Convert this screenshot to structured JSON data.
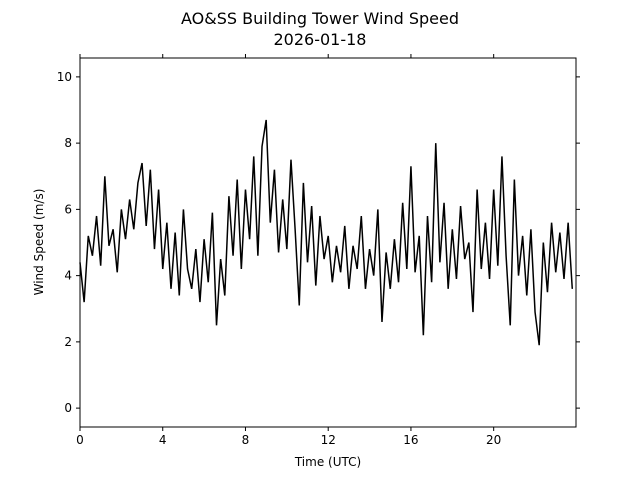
{
  "chart_data": {
    "type": "line",
    "title": "AO&SS Building Tower Wind Speed",
    "subtitle": "2026-01-18",
    "x_label": "Time (UTC)",
    "y_label": "Wind Speed (m/s)",
    "xlim": [
      0,
      23.98
    ],
    "xticks": [
      0,
      4,
      8,
      12,
      16,
      20
    ],
    "ylim": [
      -0.57,
      10.57
    ],
    "yticks": [
      0,
      2,
      4,
      6,
      8,
      10
    ],
    "color": "#000000",
    "x": [
      0.0,
      0.2,
      0.4,
      0.6,
      0.8,
      1.0,
      1.2,
      1.4,
      1.6,
      1.8,
      2.0,
      2.2,
      2.4,
      2.6,
      2.8,
      3.0,
      3.2,
      3.4,
      3.6,
      3.8,
      4.0,
      4.2,
      4.4,
      4.6,
      4.8,
      5.0,
      5.2,
      5.4,
      5.6,
      5.8,
      6.0,
      6.2,
      6.4,
      6.6,
      6.8,
      7.0,
      7.2,
      7.4,
      7.6,
      7.8,
      8.0,
      8.2,
      8.4,
      8.6,
      8.8,
      9.0,
      9.2,
      9.4,
      9.6,
      9.8,
      10.0,
      10.2,
      10.4,
      10.6,
      10.8,
      11.0,
      11.2,
      11.4,
      11.6,
      11.8,
      12.0,
      12.2,
      12.4,
      12.6,
      12.8,
      13.0,
      13.2,
      13.4,
      13.6,
      13.8,
      14.0,
      14.2,
      14.4,
      14.6,
      14.8,
      15.0,
      15.2,
      15.4,
      15.6,
      15.8,
      16.0,
      16.2,
      16.4,
      16.6,
      16.8,
      17.0,
      17.2,
      17.4,
      17.6,
      17.8,
      18.0,
      18.2,
      18.4,
      18.6,
      18.8,
      19.0,
      19.2,
      19.4,
      19.6,
      19.8,
      20.0,
      20.2,
      20.4,
      20.6,
      20.8,
      21.0,
      21.2,
      21.4,
      21.6,
      21.8,
      22.0,
      22.2,
      22.4,
      22.6,
      22.8,
      23.0,
      23.2,
      23.4,
      23.6,
      23.8
    ],
    "values": [
      4.4,
      3.2,
      5.2,
      4.6,
      5.8,
      4.3,
      7.0,
      4.9,
      5.4,
      4.1,
      6.0,
      5.1,
      6.3,
      5.4,
      6.8,
      7.4,
      5.5,
      7.2,
      4.8,
      6.6,
      4.2,
      5.6,
      3.6,
      5.3,
      3.4,
      6.0,
      4.2,
      3.6,
      4.8,
      3.2,
      5.1,
      3.8,
      5.9,
      2.5,
      4.5,
      3.4,
      6.4,
      4.6,
      6.9,
      4.2,
      6.6,
      5.1,
      7.6,
      4.6,
      7.9,
      8.7,
      5.6,
      7.2,
      4.7,
      6.3,
      4.8,
      7.5,
      5.4,
      3.1,
      6.8,
      4.4,
      6.1,
      3.7,
      5.8,
      4.5,
      5.2,
      3.8,
      4.9,
      4.1,
      5.5,
      3.6,
      4.9,
      4.2,
      5.8,
      3.6,
      4.8,
      4.0,
      6.0,
      2.6,
      4.7,
      3.6,
      5.1,
      3.8,
      6.2,
      4.2,
      7.3,
      4.1,
      5.2,
      2.2,
      5.8,
      3.8,
      8.0,
      4.4,
      6.2,
      3.6,
      5.4,
      3.9,
      6.1,
      4.5,
      5.0,
      2.9,
      6.6,
      4.2,
      5.6,
      3.9,
      6.6,
      4.3,
      7.6,
      4.6,
      2.5,
      6.9,
      4.0,
      5.2,
      3.4,
      5.4,
      2.9,
      1.9,
      5.0,
      3.5,
      5.6,
      4.1,
      5.3,
      3.9,
      5.6,
      3.6
    ]
  }
}
